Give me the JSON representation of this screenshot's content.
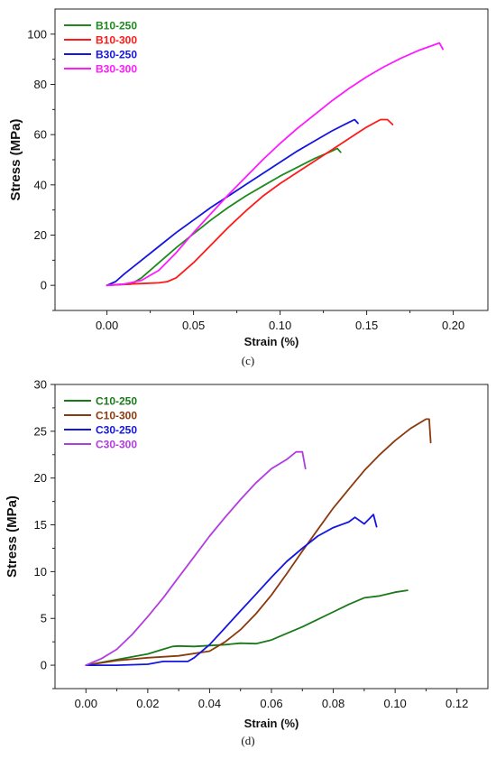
{
  "chart_data": [
    {
      "type": "line",
      "panel_label": "(c)",
      "xlabel": "Strain (%)",
      "ylabel": "Stress (MPa)",
      "xlim": [
        -0.03,
        0.22
      ],
      "ylim": [
        -10,
        110
      ],
      "xticks": [
        "0.00",
        "0.05",
        "0.10",
        "0.15",
        "0.20"
      ],
      "yticks": [
        "0",
        "20",
        "40",
        "60",
        "80",
        "100"
      ],
      "legend_position": "top-left",
      "series": [
        {
          "name": "B10-250",
          "color": "#1e8a1e",
          "x": [
            0.0,
            0.014,
            0.02,
            0.03,
            0.04,
            0.05,
            0.06,
            0.07,
            0.08,
            0.09,
            0.1,
            0.11,
            0.12,
            0.13,
            0.133,
            0.135
          ],
          "y": [
            0.0,
            0.5,
            3,
            9,
            15,
            20.5,
            26,
            31,
            35.5,
            39.5,
            43.5,
            47,
            50.5,
            53.5,
            54.5,
            53
          ]
        },
        {
          "name": "B10-300",
          "color": "#ff1a1a",
          "x": [
            0.0,
            0.01,
            0.02,
            0.03,
            0.035,
            0.04,
            0.05,
            0.06,
            0.07,
            0.08,
            0.09,
            0.1,
            0.11,
            0.12,
            0.13,
            0.14,
            0.15,
            0.158,
            0.162,
            0.165
          ],
          "y": [
            0.0,
            0.5,
            0.7,
            1,
            1.5,
            3,
            9,
            16,
            23,
            29.5,
            35.5,
            40.5,
            45,
            49.5,
            54,
            58.5,
            63,
            66,
            66,
            64
          ]
        },
        {
          "name": "B30-250",
          "color": "#1515e0",
          "x": [
            0.0,
            0.005,
            0.01,
            0.02,
            0.03,
            0.04,
            0.05,
            0.06,
            0.07,
            0.08,
            0.09,
            0.1,
            0.11,
            0.12,
            0.13,
            0.14,
            0.143,
            0.145
          ],
          "y": [
            0.0,
            1.5,
            4.5,
            10,
            15.5,
            21,
            26,
            31,
            35.5,
            40,
            44.5,
            49,
            53.5,
            57.5,
            61.5,
            65,
            66,
            64.5
          ]
        },
        {
          "name": "B30-300",
          "color": "#ff1aff",
          "x": [
            0.0,
            0.01,
            0.02,
            0.03,
            0.04,
            0.05,
            0.06,
            0.07,
            0.08,
            0.09,
            0.1,
            0.11,
            0.12,
            0.13,
            0.14,
            0.15,
            0.16,
            0.17,
            0.18,
            0.19,
            0.192,
            0.194
          ],
          "y": [
            0.0,
            0.5,
            2,
            6,
            13,
            21,
            28.5,
            36,
            43,
            50,
            56.5,
            62.5,
            68,
            73.5,
            78.5,
            83,
            87,
            90.5,
            93.5,
            96,
            96.5,
            94
          ]
        }
      ]
    },
    {
      "type": "line",
      "panel_label": "(d)",
      "xlabel": "Strain (%)",
      "ylabel": "Stress (MPa)",
      "xlim": [
        -0.01,
        0.13
      ],
      "ylim": [
        -2.5,
        30
      ],
      "xticks": [
        "0.00",
        "0.02",
        "0.04",
        "0.06",
        "0.08",
        "0.10",
        "0.12"
      ],
      "yticks": [
        "0",
        "5",
        "10",
        "15",
        "20",
        "25",
        "30"
      ],
      "legend_position": "top-left",
      "series": [
        {
          "name": "C10-250",
          "color": "#1a7a1a",
          "x": [
            0.0,
            0.01,
            0.02,
            0.025,
            0.028,
            0.03,
            0.035,
            0.04,
            0.045,
            0.05,
            0.055,
            0.06,
            0.065,
            0.07,
            0.075,
            0.08,
            0.085,
            0.09,
            0.095,
            0.1,
            0.104
          ],
          "y": [
            0.0,
            0.6,
            1.2,
            1.7,
            2.0,
            2.05,
            2.0,
            2.1,
            2.2,
            2.35,
            2.3,
            2.7,
            3.4,
            4.1,
            4.9,
            5.7,
            6.5,
            7.2,
            7.4,
            7.8,
            8.0
          ]
        },
        {
          "name": "C10-300",
          "color": "#8b3a0f",
          "x": [
            0.0,
            0.01,
            0.02,
            0.03,
            0.04,
            0.045,
            0.05,
            0.055,
            0.06,
            0.065,
            0.07,
            0.075,
            0.08,
            0.085,
            0.09,
            0.095,
            0.1,
            0.105,
            0.11,
            0.111,
            0.1115
          ],
          "y": [
            0.0,
            0.5,
            0.8,
            1.0,
            1.5,
            2.5,
            3.8,
            5.5,
            7.5,
            9.8,
            12.2,
            14.5,
            16.8,
            18.8,
            20.8,
            22.5,
            24.0,
            25.3,
            26.3,
            26.3,
            23.8
          ]
        },
        {
          "name": "C30-250",
          "color": "#1515e0",
          "x": [
            0.0,
            0.01,
            0.02,
            0.025,
            0.03,
            0.033,
            0.035,
            0.04,
            0.045,
            0.05,
            0.055,
            0.06,
            0.065,
            0.07,
            0.075,
            0.08,
            0.085,
            0.087,
            0.09,
            0.093,
            0.094
          ],
          "y": [
            0.0,
            0.0,
            0.1,
            0.4,
            0.4,
            0.4,
            0.8,
            2.2,
            4.0,
            5.8,
            7.6,
            9.4,
            11.1,
            12.5,
            13.8,
            14.7,
            15.3,
            15.8,
            15.1,
            16.1,
            14.8
          ]
        },
        {
          "name": "C30-300",
          "color": "#b13de0",
          "x": [
            0.0,
            0.005,
            0.01,
            0.015,
            0.02,
            0.025,
            0.03,
            0.035,
            0.04,
            0.045,
            0.05,
            0.055,
            0.06,
            0.065,
            0.068,
            0.07,
            0.071
          ],
          "y": [
            0.0,
            0.7,
            1.7,
            3.3,
            5.2,
            7.2,
            9.4,
            11.6,
            13.8,
            15.8,
            17.7,
            19.5,
            21.0,
            22.0,
            22.8,
            22.8,
            21.0
          ]
        }
      ]
    }
  ]
}
